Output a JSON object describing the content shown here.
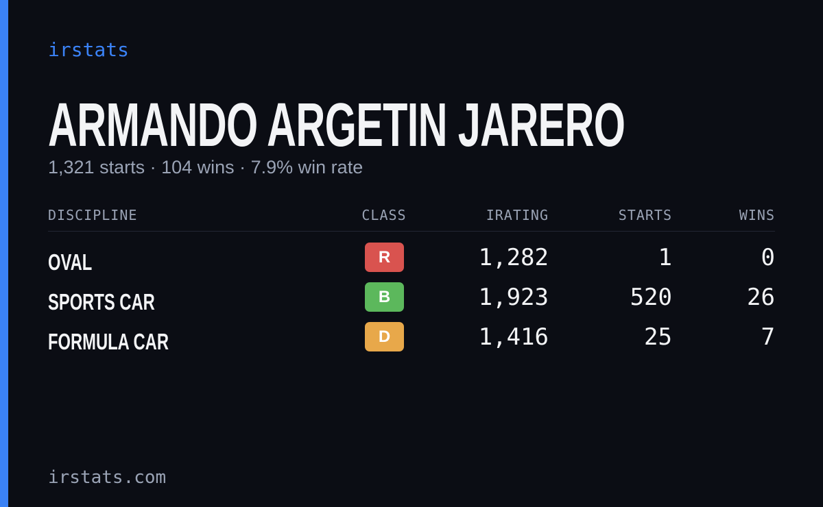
{
  "brand": "irstats",
  "header": {
    "title": "ARMANDO ARGETIN JARERO",
    "subtitle": "1,321 starts · 104 wins · 7.9% win rate"
  },
  "table": {
    "columns": [
      "DISCIPLINE",
      "CLASS",
      "IRATING",
      "STARTS",
      "WINS"
    ],
    "rows": [
      {
        "discipline": "OVAL",
        "class": "R",
        "class_color": "#d9534f",
        "irating": "1,282",
        "starts": "1",
        "wins": "0"
      },
      {
        "discipline": "SPORTS CAR",
        "class": "B",
        "class_color": "#5cb85c",
        "irating": "1,923",
        "starts": "520",
        "wins": "26"
      },
      {
        "discipline": "FORMULA CAR",
        "class": "D",
        "class_color": "#e8a84a",
        "irating": "1,416",
        "starts": "25",
        "wins": "7"
      }
    ]
  },
  "footer": {
    "url": "irstats.com"
  }
}
